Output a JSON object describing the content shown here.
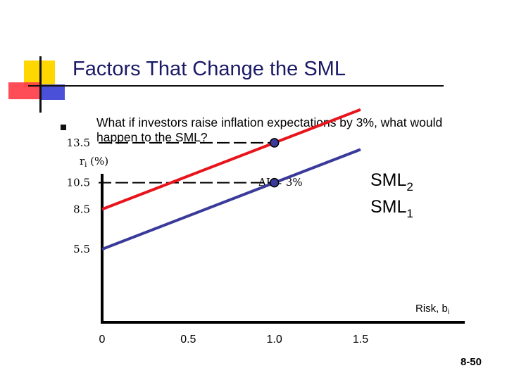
{
  "slide": {
    "title": "Factors That Change the SML",
    "bullet": "What if investors raise inflation expectations by 3%, what would happen to the SML?",
    "page_number": "8-50"
  },
  "colors": {
    "title": "#1a1a66",
    "sml2": "#e8141c",
    "sml1": "#3a3a9a",
    "deco_yellow": "#ffd700",
    "deco_red": "#ff3a46",
    "deco_blue": "#4a50d8"
  },
  "chart_data": {
    "type": "line",
    "ylabel_main": "r",
    "ylabel_sub": "i",
    "ylabel_unit": " (%)",
    "xlabel_main": "Risk, b",
    "xlabel_sub": "i",
    "x_ticks": [
      "0",
      "0.5",
      "1.0",
      "1.5"
    ],
    "x_tick_values": [
      0,
      0.5,
      1.0,
      1.5
    ],
    "y_ticks": [
      "13.5",
      "10.5",
      "8.5",
      "5.5"
    ],
    "y_tick_values": [
      13.5,
      10.5,
      8.5,
      5.5
    ],
    "xlim": [
      0,
      1.5
    ],
    "ylim": [
      0,
      19
    ],
    "annotation": "ΔI = 3%",
    "series": [
      {
        "name": "SML",
        "subscript": "2",
        "x": [
          0,
          1.0,
          1.5
        ],
        "y": [
          8.5,
          13.5,
          16.0
        ]
      },
      {
        "name": "SML",
        "subscript": "1",
        "x": [
          0,
          1.0,
          1.5
        ],
        "y": [
          5.5,
          10.5,
          13.0
        ]
      }
    ],
    "markers": [
      {
        "x": 1.0,
        "y": 13.5
      },
      {
        "x": 1.0,
        "y": 10.5
      }
    ]
  }
}
